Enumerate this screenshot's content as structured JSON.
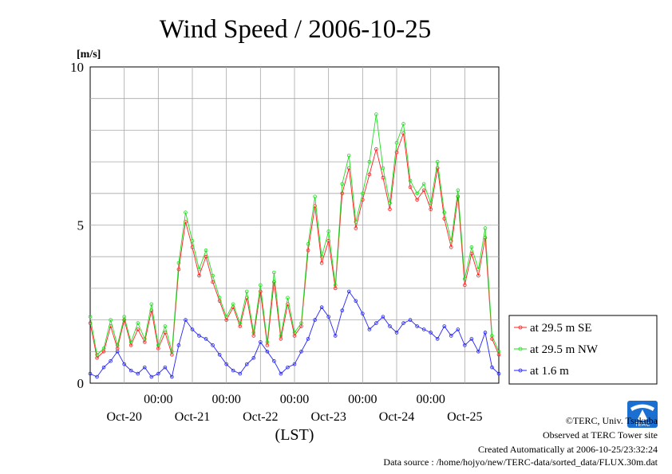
{
  "chart_data": {
    "type": "line",
    "title": "Wind Speed / 2006-10-25",
    "ylabel": "[m/s]",
    "xlabel": "(LST)",
    "ylim": [
      0,
      10
    ],
    "yticks": [
      "0",
      "5",
      "10"
    ],
    "xlim": [
      0,
      6
    ],
    "xtick_top": [
      "00:00",
      "00:00",
      "00:00",
      "00:00",
      "00:00"
    ],
    "xtick_bottom": [
      "Oct-20",
      "Oct-21",
      "Oct-22",
      "Oct-23",
      "Oct-24",
      "Oct-25"
    ],
    "grid": true,
    "legend_position": "right",
    "series": [
      {
        "name": "at 29.5 m SE",
        "color": "#ff2020",
        "x": [
          0.0,
          0.1,
          0.2,
          0.3,
          0.4,
          0.5,
          0.6,
          0.7,
          0.8,
          0.9,
          1.0,
          1.1,
          1.2,
          1.3,
          1.4,
          1.5,
          1.6,
          1.7,
          1.8,
          1.9,
          2.0,
          2.1,
          2.2,
          2.3,
          2.4,
          2.5,
          2.6,
          2.7,
          2.8,
          2.9,
          3.0,
          3.1,
          3.2,
          3.3,
          3.4,
          3.5,
          3.6,
          3.7,
          3.8,
          3.9,
          4.0,
          4.1,
          4.2,
          4.3,
          4.4,
          4.5,
          4.6,
          4.7,
          4.8,
          4.9,
          5.0,
          5.1,
          5.2,
          5.3,
          5.4,
          5.5,
          5.6,
          5.7,
          5.8,
          5.9,
          6.0
        ],
        "values": [
          1.9,
          0.8,
          1.0,
          1.8,
          1.1,
          2.0,
          1.2,
          1.7,
          1.3,
          2.3,
          1.1,
          1.6,
          0.9,
          3.6,
          5.1,
          4.3,
          3.4,
          4.0,
          3.2,
          2.6,
          2.0,
          2.4,
          1.8,
          2.7,
          1.5,
          2.9,
          1.2,
          3.2,
          1.4,
          2.5,
          1.5,
          1.8,
          4.2,
          5.6,
          3.8,
          4.5,
          3.0,
          6.0,
          6.8,
          4.9,
          5.8,
          6.6,
          7.4,
          6.5,
          5.5,
          7.3,
          7.9,
          6.2,
          5.8,
          6.1,
          5.5,
          6.8,
          5.2,
          4.3,
          5.9,
          3.1,
          4.1,
          3.4,
          4.6,
          1.4,
          0.9
        ]
      },
      {
        "name": "at 29.5 m NW",
        "color": "#22dd22",
        "x": [
          0.0,
          0.1,
          0.2,
          0.3,
          0.4,
          0.5,
          0.6,
          0.7,
          0.8,
          0.9,
          1.0,
          1.1,
          1.2,
          1.3,
          1.4,
          1.5,
          1.6,
          1.7,
          1.8,
          1.9,
          2.0,
          2.1,
          2.2,
          2.3,
          2.4,
          2.5,
          2.6,
          2.7,
          2.8,
          2.9,
          3.0,
          3.1,
          3.2,
          3.3,
          3.4,
          3.5,
          3.6,
          3.7,
          3.8,
          3.9,
          4.0,
          4.1,
          4.2,
          4.3,
          4.4,
          4.5,
          4.6,
          4.7,
          4.8,
          4.9,
          5.0,
          5.1,
          5.2,
          5.3,
          5.4,
          5.5,
          5.6,
          5.7,
          5.8,
          5.9,
          6.0
        ],
        "values": [
          2.1,
          0.9,
          1.1,
          2.0,
          1.2,
          2.1,
          1.3,
          1.9,
          1.4,
          2.5,
          1.2,
          1.8,
          1.0,
          3.8,
          5.4,
          4.5,
          3.6,
          4.2,
          3.4,
          2.7,
          2.1,
          2.5,
          1.9,
          2.9,
          1.6,
          3.1,
          1.3,
          3.5,
          1.5,
          2.7,
          1.6,
          1.9,
          4.4,
          5.9,
          4.0,
          4.8,
          3.1,
          6.3,
          7.2,
          5.1,
          6.0,
          7.0,
          8.5,
          6.8,
          5.7,
          7.6,
          8.2,
          6.4,
          6.0,
          6.3,
          5.7,
          7.0,
          5.4,
          4.5,
          6.1,
          3.3,
          4.3,
          3.6,
          4.9,
          1.5,
          1.0
        ]
      },
      {
        "name": "at 1.6 m",
        "color": "#2222ff",
        "x": [
          0.0,
          0.1,
          0.2,
          0.3,
          0.4,
          0.5,
          0.6,
          0.7,
          0.8,
          0.9,
          1.0,
          1.1,
          1.2,
          1.3,
          1.4,
          1.5,
          1.6,
          1.7,
          1.8,
          1.9,
          2.0,
          2.1,
          2.2,
          2.3,
          2.4,
          2.5,
          2.6,
          2.7,
          2.8,
          2.9,
          3.0,
          3.1,
          3.2,
          3.3,
          3.4,
          3.5,
          3.6,
          3.7,
          3.8,
          3.9,
          4.0,
          4.1,
          4.2,
          4.3,
          4.4,
          4.5,
          4.6,
          4.7,
          4.8,
          4.9,
          5.0,
          5.1,
          5.2,
          5.3,
          5.4,
          5.5,
          5.6,
          5.7,
          5.8,
          5.9,
          6.0
        ],
        "values": [
          0.3,
          0.2,
          0.5,
          0.7,
          1.0,
          0.6,
          0.4,
          0.3,
          0.5,
          0.2,
          0.3,
          0.5,
          0.2,
          1.2,
          2.0,
          1.7,
          1.5,
          1.4,
          1.2,
          0.9,
          0.6,
          0.4,
          0.3,
          0.6,
          0.8,
          1.3,
          1.0,
          0.7,
          0.3,
          0.5,
          0.6,
          1.0,
          1.4,
          2.0,
          2.4,
          2.1,
          1.5,
          2.3,
          2.9,
          2.6,
          2.2,
          1.7,
          1.9,
          2.1,
          1.8,
          1.6,
          1.9,
          2.0,
          1.8,
          1.7,
          1.6,
          1.4,
          1.8,
          1.5,
          1.7,
          1.2,
          1.4,
          1.0,
          1.6,
          0.5,
          0.3
        ]
      }
    ]
  },
  "credits": {
    "copyright": "©TERC, Univ. Tsukuba",
    "site": "Observed at TERC Tower site",
    "created": "Created Automatically at 2006-10-25/23:32:24",
    "source": "Data source : /home/hojyo/new/TERC-data/sorted_data/FLUX.30m.dat",
    "logo_text": "TERC"
  }
}
